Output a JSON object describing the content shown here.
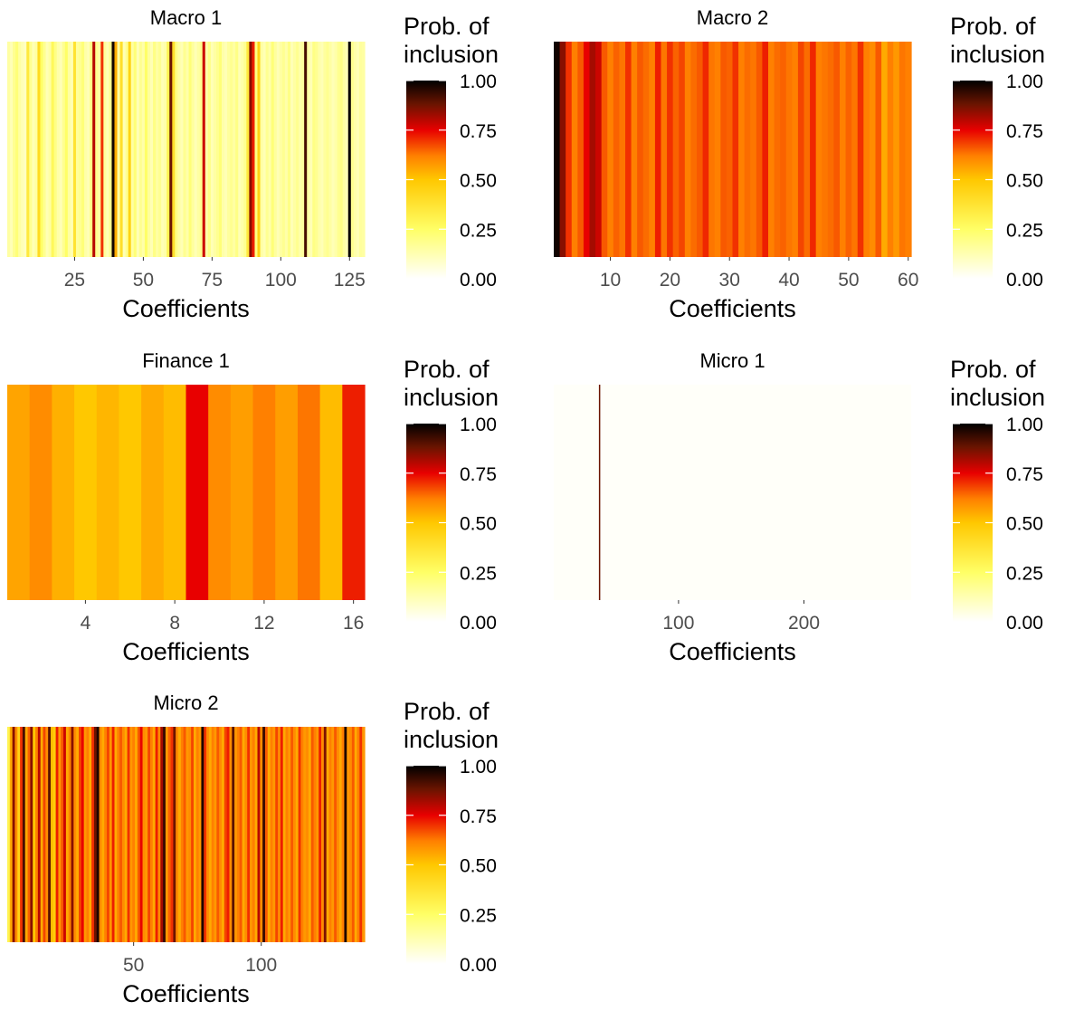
{
  "colorbar": {
    "title_line1": "Prob. of",
    "title_line2": "inclusion",
    "ticks": [
      "1.00",
      "0.75",
      "0.50",
      "0.25",
      "0.00"
    ],
    "tick_values": [
      1.0,
      0.75,
      0.5,
      0.25,
      0.0
    ],
    "gradient": [
      {
        "v": 0.0,
        "color": "#ffffff"
      },
      {
        "v": 0.25,
        "color": "#ffff66"
      },
      {
        "v": 0.5,
        "color": "#ffc800"
      },
      {
        "v": 0.62,
        "color": "#ff8000"
      },
      {
        "v": 0.75,
        "color": "#e80000"
      },
      {
        "v": 0.88,
        "color": "#6b1400"
      },
      {
        "v": 1.0,
        "color": "#000000"
      }
    ]
  },
  "chart_data": [
    {
      "type": "heatmap",
      "title": "Macro 1",
      "xlabel": "Coefficients",
      "xlim": [
        0.5,
        130.5
      ],
      "xticks": [
        25,
        50,
        75,
        100,
        125
      ],
      "tick_labels": [
        "25",
        "50",
        "75",
        "100",
        "125"
      ],
      "values": [
        0.15,
        0.12,
        0.18,
        0.22,
        0.15,
        0.12,
        0.1,
        0.35,
        0.18,
        0.12,
        0.15,
        0.42,
        0.25,
        0.18,
        0.12,
        0.15,
        0.28,
        0.2,
        0.14,
        0.12,
        0.18,
        0.25,
        0.15,
        0.12,
        0.38,
        0.16,
        0.18,
        0.22,
        0.14,
        0.12,
        0.2,
        0.8,
        0.18,
        0.15,
        0.7,
        0.16,
        0.12,
        0.18,
        0.98,
        0.55,
        0.15,
        0.4,
        0.12,
        0.18,
        0.45,
        0.15,
        0.22,
        0.12,
        0.18,
        0.14,
        0.25,
        0.16,
        0.12,
        0.2,
        0.15,
        0.18,
        0.12,
        0.14,
        0.3,
        0.88,
        0.4,
        0.2,
        0.15,
        0.12,
        0.18,
        0.14,
        0.22,
        0.16,
        0.12,
        0.15,
        0.18,
        0.78,
        0.14,
        0.2,
        0.12,
        0.15,
        0.18,
        0.22,
        0.14,
        0.12,
        0.16,
        0.18,
        0.15,
        0.2,
        0.12,
        0.14,
        0.18,
        0.35,
        0.85,
        0.72,
        0.2,
        0.45,
        0.15,
        0.12,
        0.18,
        0.14,
        0.22,
        0.16,
        0.12,
        0.15,
        0.18,
        0.14,
        0.2,
        0.12,
        0.15,
        0.18,
        0.14,
        0.16,
        0.92,
        0.15,
        0.12,
        0.2,
        0.18,
        0.14,
        0.12,
        0.16,
        0.18,
        0.15,
        0.12,
        0.14,
        0.18,
        0.2,
        0.15,
        0.12,
        0.99,
        0.18,
        0.14,
        0.12,
        0.16,
        0.15
      ]
    },
    {
      "type": "heatmap",
      "title": "Macro 2",
      "xlabel": "Coefficients",
      "xlim": [
        0.5,
        60.5
      ],
      "xticks": [
        10,
        20,
        30,
        40,
        50,
        60
      ],
      "tick_labels": [
        "10",
        "20",
        "30",
        "40",
        "50",
        "60"
      ],
      "values": [
        0.98,
        0.85,
        0.7,
        0.62,
        0.66,
        0.75,
        0.82,
        0.78,
        0.66,
        0.62,
        0.65,
        0.63,
        0.7,
        0.62,
        0.66,
        0.64,
        0.62,
        0.72,
        0.63,
        0.7,
        0.65,
        0.68,
        0.62,
        0.64,
        0.66,
        0.71,
        0.63,
        0.62,
        0.66,
        0.65,
        0.7,
        0.62,
        0.64,
        0.63,
        0.66,
        0.72,
        0.62,
        0.64,
        0.65,
        0.63,
        0.62,
        0.68,
        0.64,
        0.71,
        0.62,
        0.63,
        0.64,
        0.66,
        0.62,
        0.65,
        0.63,
        0.7,
        0.62,
        0.6,
        0.66,
        0.55,
        0.62,
        0.58,
        0.63,
        0.62
      ]
    },
    {
      "type": "heatmap",
      "title": "Finance 1",
      "xlabel": "Coefficients",
      "xlim": [
        0.5,
        16.5
      ],
      "xticks": [
        4,
        8,
        12,
        16
      ],
      "tick_labels": [
        "4",
        "8",
        "12",
        "16"
      ],
      "values": [
        0.56,
        0.6,
        0.54,
        0.5,
        0.53,
        0.5,
        0.55,
        0.52,
        0.75,
        0.6,
        0.57,
        0.62,
        0.57,
        0.63,
        0.52,
        0.72
      ]
    },
    {
      "type": "heatmap",
      "title": "Micro 1",
      "xlabel": "Coefficients",
      "xlim": [
        0.5,
        285.5
      ],
      "xticks": [
        100,
        200
      ],
      "tick_labels": [
        "100",
        "200"
      ],
      "baseline": 0.01,
      "highlights": [
        {
          "x": 37,
          "value": 0.88
        }
      ]
    },
    {
      "type": "heatmap",
      "title": "Micro 2",
      "xlabel": "Coefficients",
      "xlim": [
        0.5,
        140.5
      ],
      "xticks": [
        50,
        100
      ],
      "tick_labels": [
        "50",
        "100"
      ],
      "values": [
        0.3,
        0.55,
        0.85,
        0.6,
        0.45,
        0.7,
        0.92,
        0.55,
        0.65,
        0.85,
        0.5,
        0.62,
        0.8,
        0.55,
        0.68,
        0.6,
        0.9,
        0.52,
        0.48,
        0.72,
        0.58,
        0.66,
        0.78,
        0.55,
        0.62,
        0.85,
        0.6,
        0.55,
        0.68,
        0.75,
        0.58,
        0.62,
        0.55,
        0.7,
        0.88,
        0.97,
        0.6,
        0.55,
        0.62,
        0.68,
        0.58,
        0.72,
        0.55,
        0.62,
        0.66,
        0.6,
        0.55,
        0.7,
        0.58,
        0.62,
        0.55,
        0.66,
        0.75,
        0.6,
        0.58,
        0.68,
        0.62,
        0.55,
        0.72,
        0.6,
        0.82,
        0.94,
        0.58,
        0.65,
        0.7,
        0.88,
        0.6,
        0.55,
        0.62,
        0.66,
        0.58,
        0.6,
        0.68,
        0.55,
        0.62,
        0.58,
        0.97,
        0.7,
        0.6,
        0.55,
        0.62,
        0.58,
        0.66,
        0.6,
        0.55,
        0.68,
        0.72,
        0.6,
        0.9,
        0.58,
        0.62,
        0.66,
        0.55,
        0.6,
        0.7,
        0.58,
        0.62,
        0.55,
        0.8,
        0.6,
        0.94,
        0.66,
        0.55,
        0.62,
        0.58,
        0.68,
        0.6,
        0.72,
        0.55,
        0.62,
        0.58,
        0.66,
        0.6,
        0.55,
        0.7,
        0.62,
        0.58,
        0.6,
        0.55,
        0.66,
        0.62,
        0.58,
        0.72,
        0.6,
        0.86,
        0.55,
        0.62,
        0.58,
        0.66,
        0.6,
        0.55,
        0.62,
        0.97,
        0.58,
        0.6,
        0.66,
        0.55,
        0.62,
        0.7,
        0.58
      ]
    }
  ]
}
